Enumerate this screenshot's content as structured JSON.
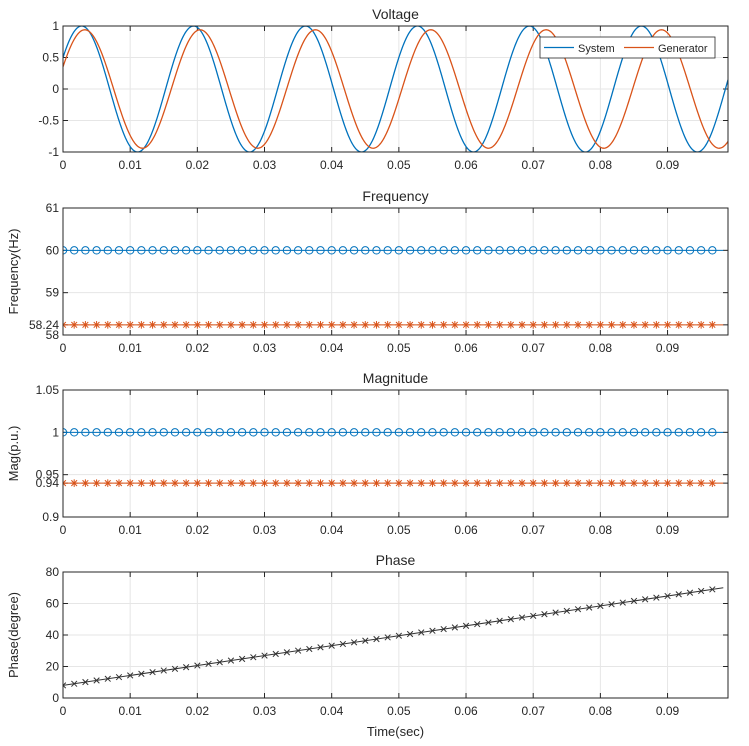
{
  "chart_data": [
    {
      "type": "line",
      "title": "Voltage",
      "xlabel": "",
      "ylabel": "",
      "xlim": [
        0,
        0.099
      ],
      "ylim": [
        -1,
        1
      ],
      "xticks": [
        "0",
        "0.01",
        "0.02",
        "0.03",
        "0.04",
        "0.05",
        "0.06",
        "0.07",
        "0.08",
        "0.09"
      ],
      "yticks": [
        "-1",
        "-0.5",
        "0",
        "0.5",
        "1"
      ],
      "grid": true,
      "legend": "top-right",
      "series": [
        {
          "name": "System",
          "color": "#0072BD",
          "function": "sin",
          "amplitude": 1.0,
          "frequency_hz": 60,
          "phase_deg": 30
        },
        {
          "name": "Generator",
          "color": "#D95319",
          "function": "sin",
          "amplitude": 0.94,
          "frequency_hz": 58.24,
          "phase_deg": 22
        }
      ]
    },
    {
      "type": "scatter",
      "title": "Frequency",
      "xlabel": "",
      "ylabel": "Frequency(Hz)",
      "xlim": [
        0,
        0.099
      ],
      "ylim": [
        58,
        61
      ],
      "xticks": [
        "0",
        "0.01",
        "0.02",
        "0.03",
        "0.04",
        "0.05",
        "0.06",
        "0.07",
        "0.08",
        "0.09"
      ],
      "yticks": [
        "58",
        "58.24",
        "59",
        "60",
        "61"
      ],
      "grid": true,
      "x_start": 0,
      "x_step": 0.0016667,
      "x_end": 0.0983,
      "series": [
        {
          "value": 60,
          "marker": "circle",
          "color": "#0072BD"
        },
        {
          "value": 58.24,
          "marker": "star",
          "color": "#D95319"
        }
      ]
    },
    {
      "type": "scatter",
      "title": "Magnitude",
      "xlabel": "",
      "ylabel": "Mag(p.u.)",
      "xlim": [
        0,
        0.099
      ],
      "ylim": [
        0.9,
        1.05
      ],
      "xticks": [
        "0",
        "0.01",
        "0.02",
        "0.03",
        "0.04",
        "0.05",
        "0.06",
        "0.07",
        "0.08",
        "0.09"
      ],
      "yticks": [
        "0.9",
        "0.94",
        "0.95",
        "1",
        "1.05"
      ],
      "grid": true,
      "x_start": 0,
      "x_step": 0.0016667,
      "x_end": 0.0983,
      "series": [
        {
          "value": 1.0,
          "marker": "circle",
          "color": "#0072BD"
        },
        {
          "value": 0.94,
          "marker": "star",
          "color": "#D95319"
        }
      ]
    },
    {
      "type": "line",
      "title": "Phase",
      "xlabel": "Time(sec)",
      "ylabel": "Phase(degree)",
      "xlim": [
        0,
        0.099
      ],
      "ylim": [
        0,
        80
      ],
      "xticks": [
        "0",
        "0.01",
        "0.02",
        "0.03",
        "0.04",
        "0.05",
        "0.06",
        "0.07",
        "0.08",
        "0.09"
      ],
      "yticks": [
        "0",
        "20",
        "40",
        "60",
        "80"
      ],
      "grid": true,
      "x_start": 0,
      "x_step": 0.0016667,
      "x_end": 0.0983,
      "series": [
        {
          "y_start": 8,
          "y_end": 70,
          "marker": "x",
          "color": "#333333"
        }
      ]
    }
  ]
}
